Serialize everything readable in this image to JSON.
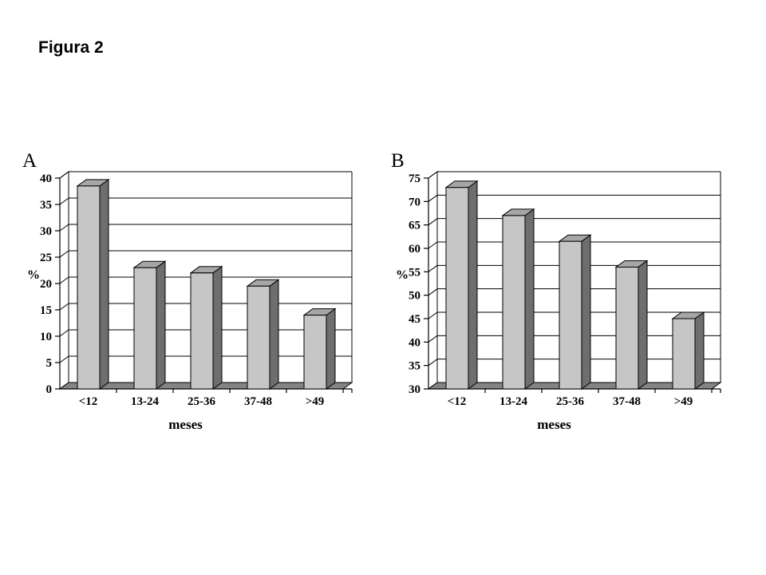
{
  "page": {
    "title": "Figura 2"
  },
  "colors": {
    "background": "#ffffff",
    "text": "#000000",
    "outline": "#000000",
    "bar_front": "#c6c6c6",
    "bar_top": "#a6a6a6",
    "bar_side": "#6e6e6e",
    "floor": "#848484",
    "wall": "#ffffff"
  },
  "chart_data": [
    {
      "type": "bar",
      "style": "3d-bar",
      "panel_label": "A",
      "categories": [
        "<12",
        "13-24",
        "25-36",
        "37-48",
        ">49"
      ],
      "values": [
        38.5,
        23,
        22,
        19.5,
        14
      ],
      "xlabel": "meses",
      "ylabel": "%",
      "ylim": [
        0,
        40
      ],
      "ytick_step": 5,
      "yticks": [
        0,
        5,
        10,
        15,
        20,
        25,
        30,
        35,
        40
      ],
      "grid": true,
      "legend": "none"
    },
    {
      "type": "bar",
      "style": "3d-bar",
      "panel_label": "B",
      "categories": [
        "<12",
        "13-24",
        "25-36",
        "37-48",
        ">49"
      ],
      "values": [
        73,
        67,
        61.5,
        56,
        45
      ],
      "xlabel": "meses",
      "ylabel": "%",
      "ylim": [
        30,
        75
      ],
      "ytick_step": 5,
      "yticks": [
        30,
        35,
        40,
        45,
        50,
        55,
        60,
        65,
        70,
        75
      ],
      "grid": true,
      "legend": "none"
    }
  ]
}
